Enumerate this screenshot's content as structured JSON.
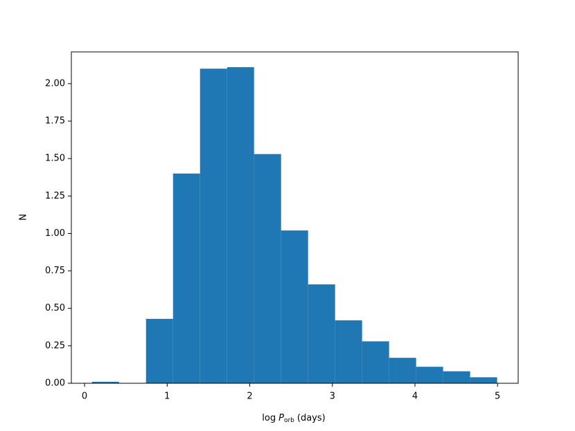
{
  "chart_data": {
    "type": "histogram",
    "xlabel": {
      "prefix": "log",
      "symbol": "P",
      "subscript": "orb",
      "suffix": "(days)"
    },
    "ylabel": "N",
    "color": "#1f77b4",
    "bins": [
      0.09,
      0.417,
      0.744,
      1.071,
      1.398,
      1.725,
      2.052,
      2.379,
      2.706,
      3.033,
      3.36,
      3.687,
      4.014,
      4.341,
      4.668,
      4.995
    ],
    "values": [
      0.01,
      0,
      0.43,
      1.4,
      2.1,
      2.11,
      1.53,
      1.02,
      0.66,
      0.42,
      0.28,
      0.17,
      0.11,
      0.08,
      0.04
    ],
    "xlim": [
      -0.16,
      5.25
    ],
    "ylim": [
      0,
      2.212
    ],
    "xticks": [
      0,
      1,
      2,
      3,
      4,
      5
    ],
    "yticks": [
      {
        "value": 0,
        "label": "0.00"
      },
      {
        "value": 0.25,
        "label": "0.25"
      },
      {
        "value": 0.5,
        "label": "0.50"
      },
      {
        "value": 0.75,
        "label": "0.75"
      },
      {
        "value": 1,
        "label": "1.00"
      },
      {
        "value": 1.25,
        "label": "1.25"
      },
      {
        "value": 1.5,
        "label": "1.50"
      },
      {
        "value": 1.75,
        "label": "1.75"
      },
      {
        "value": 2,
        "label": "2.00"
      }
    ]
  }
}
